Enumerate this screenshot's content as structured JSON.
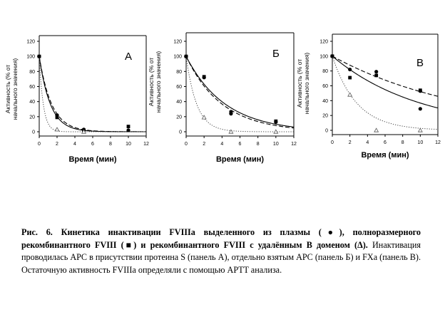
{
  "chart_data": [
    {
      "type": "scatter",
      "panel_label": "А",
      "ylabel": "Активность (% от начального значения)",
      "xlabel": "Время (мин)",
      "xlim": [
        0,
        12
      ],
      "ylim": [
        0,
        120
      ],
      "xticks": [
        0,
        2,
        4,
        6,
        8,
        10,
        12
      ],
      "yticks": [
        0,
        20,
        40,
        60,
        80,
        100,
        120
      ],
      "grid": false,
      "series": [
        {
          "marker": "circle",
          "x": [
            0,
            2,
            5,
            10
          ],
          "y": [
            100,
            22,
            3,
            2
          ]
        },
        {
          "marker": "square",
          "x": [
            0,
            2,
            5,
            10
          ],
          "y": [
            100,
            19,
            2,
            7
          ]
        },
        {
          "marker": "triangle",
          "x": [
            2,
            5
          ],
          "y": [
            3,
            0
          ]
        }
      ],
      "curves": [
        {
          "style": "solid",
          "k": 0.8
        },
        {
          "style": "dashed",
          "k": 0.72
        },
        {
          "style": "dotted",
          "k": 2.2
        }
      ]
    },
    {
      "type": "scatter",
      "panel_label": "Б",
      "ylabel": "Активность (% от начального значения)",
      "xlabel": "Время (мин)",
      "xlim": [
        0,
        12
      ],
      "ylim": [
        0,
        120
      ],
      "xticks": [
        0,
        2,
        4,
        6,
        8,
        10,
        12
      ],
      "yticks": [
        0,
        20,
        40,
        60,
        80,
        100,
        120
      ],
      "grid": false,
      "series": [
        {
          "marker": "circle",
          "x": [
            0,
            2,
            5,
            10
          ],
          "y": [
            100,
            72,
            24,
            13
          ]
        },
        {
          "marker": "square",
          "x": [
            0,
            2,
            5,
            10
          ],
          "y": [
            100,
            73,
            26,
            14
          ]
        },
        {
          "marker": "triangle",
          "x": [
            2,
            5,
            10
          ],
          "y": [
            19,
            0,
            0
          ]
        }
      ],
      "curves": [
        {
          "style": "solid",
          "k": 0.23
        },
        {
          "style": "dashed",
          "k": 0.25
        },
        {
          "style": "dotted",
          "k": 0.85
        }
      ]
    },
    {
      "type": "scatter",
      "panel_label": "В",
      "ylabel": "Активность (% от начального значения)",
      "xlabel": "Время (мин)",
      "xlim": [
        0,
        12
      ],
      "ylim": [
        0,
        120
      ],
      "xticks": [
        0,
        2,
        4,
        6,
        8,
        10,
        12
      ],
      "yticks": [
        0,
        20,
        40,
        60,
        80,
        100,
        120
      ],
      "grid": false,
      "series": [
        {
          "marker": "circle",
          "x": [
            0,
            2,
            5,
            10
          ],
          "y": [
            100,
            82,
            79,
            29
          ]
        },
        {
          "marker": "circle",
          "x": [
            10
          ],
          "y": [
            53
          ]
        },
        {
          "marker": "square",
          "x": [
            0,
            2,
            5,
            10
          ],
          "y": [
            100,
            71,
            74,
            54
          ]
        },
        {
          "marker": "triangle",
          "x": [
            2,
            5,
            10
          ],
          "y": [
            48,
            0,
            0
          ]
        }
      ],
      "curves": [
        {
          "style": "solid",
          "k": 0.1
        },
        {
          "style": "dashed",
          "k": 0.065
        },
        {
          "style": "dotted",
          "k": 0.36
        }
      ]
    }
  ],
  "caption": {
    "bold_line": "Рис. 6. Кинетика инактивации FVIIIa выделенного из плазмы (●), полноразмерного рекомбинантного FVIII (■) и рекомбинантного FVIII с удалённым В доменом (Δ).",
    "normal_text": "Инактивация проводилась APC в присутствии протеина S (панель А), отдельно взятым APC (панель Б) и FXa (панель В). Остаточную активность FVIIIa определяли с помощью APTT анализа."
  }
}
